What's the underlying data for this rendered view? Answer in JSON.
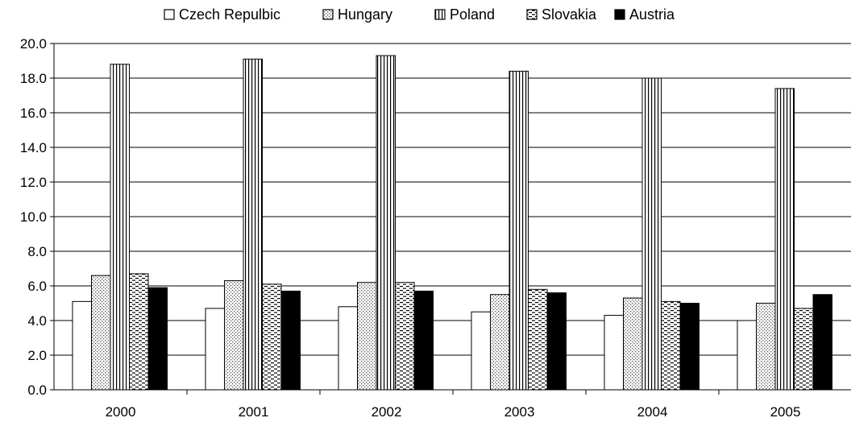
{
  "chart_data": {
    "type": "bar",
    "categories": [
      "2000",
      "2001",
      "2002",
      "2003",
      "2004",
      "2005"
    ],
    "series": [
      {
        "name": "Czech Repulbic",
        "pattern": "none",
        "values": [
          5.1,
          4.7,
          4.8,
          4.5,
          4.3,
          4.0
        ]
      },
      {
        "name": "Hungary",
        "pattern": "dots",
        "values": [
          6.6,
          6.3,
          6.2,
          5.5,
          5.3,
          5.0
        ]
      },
      {
        "name": "Poland",
        "pattern": "vertical-lines",
        "values": [
          18.8,
          19.1,
          19.3,
          18.4,
          18.0,
          17.4
        ]
      },
      {
        "name": "Slovakia",
        "pattern": "dashed-horizontal",
        "values": [
          6.7,
          6.1,
          6.2,
          5.8,
          5.1,
          4.7
        ]
      },
      {
        "name": "Austria",
        "pattern": "solid-black",
        "values": [
          5.9,
          5.7,
          5.7,
          5.6,
          5.0,
          5.5
        ]
      }
    ],
    "yticks": [
      "0.0",
      "2.0",
      "4.0",
      "6.0",
      "8.0",
      "10.0",
      "12.0",
      "14.0",
      "16.0",
      "18.0",
      "20.0"
    ],
    "ylim": [
      0,
      20
    ],
    "ystep": 2,
    "grid": true,
    "legend": "top",
    "colors": {
      "bar_stroke": "#000000",
      "fill": "#ffffff",
      "ink": "#000000"
    }
  }
}
